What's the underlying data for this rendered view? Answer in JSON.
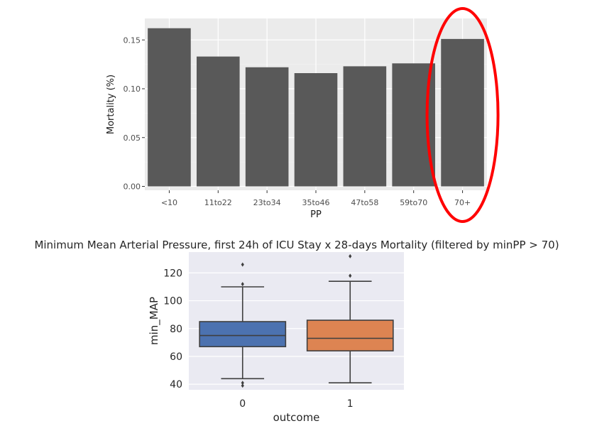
{
  "chart_data": [
    {
      "type": "bar",
      "title": "",
      "xlabel": "PP",
      "ylabel": "Mortality (%)",
      "categories": [
        "<10",
        "11to22",
        "23to34",
        "35to46",
        "47to58",
        "59to70",
        "70+"
      ],
      "values": [
        0.162,
        0.133,
        0.122,
        0.116,
        0.123,
        0.126,
        0.151
      ],
      "yticks": [
        0.0,
        0.05,
        0.1,
        0.15
      ],
      "ytick_labels": [
        "0.00",
        "0.05",
        "0.10",
        "0.15"
      ],
      "ylim": [
        -0.004,
        0.172
      ],
      "grid": true,
      "bar_color": "#595959",
      "background": "#ebebeb",
      "annotation": {
        "type": "ellipse",
        "target": "70+",
        "color": "#ff0000"
      }
    },
    {
      "type": "box",
      "title": "Minimum Mean Arterial Pressure, first 24h of ICU Stay x 28-days Mortality (filtered by minPP > 70)",
      "xlabel": "outcome",
      "ylabel": "min_MAP",
      "categories": [
        "0",
        "1"
      ],
      "yticks": [
        40,
        60,
        80,
        100,
        120
      ],
      "ylim": [
        36,
        135
      ],
      "grid": true,
      "background": "#eaeaf2",
      "boxes": [
        {
          "category": "0",
          "whisker_low": 44,
          "q1": 67,
          "median": 75,
          "q3": 85,
          "whisker_high": 110,
          "outliers": [
            39,
            41,
            112,
            126
          ],
          "color": "#4c72b0"
        },
        {
          "category": "1",
          "whisker_low": 41,
          "q1": 64,
          "median": 73,
          "q3": 86,
          "whisker_high": 114,
          "outliers": [
            118,
            132
          ],
          "color": "#dd8452"
        }
      ]
    }
  ]
}
